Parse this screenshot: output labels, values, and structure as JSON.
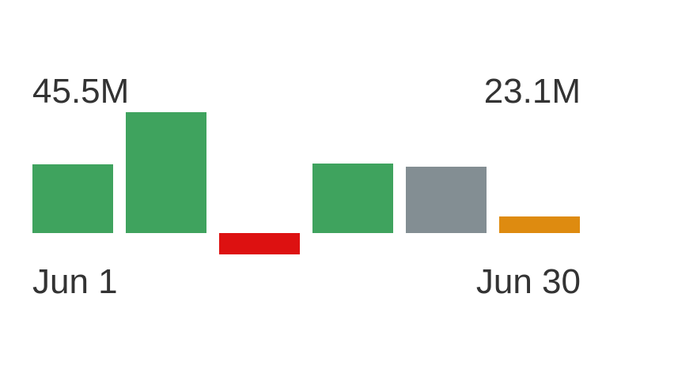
{
  "chart_data": {
    "type": "bar",
    "start_value_label": "45.5M",
    "end_value_label": "23.1M",
    "start_date_label": "Jun 1",
    "end_date_label": "Jun 30",
    "values": [
      87,
      153,
      -27,
      88,
      84,
      21
    ],
    "bar_colors": [
      "#3fa35e",
      "#3fa35e",
      "#dd1111",
      "#3fa35e",
      "#838e93",
      "#de8b10"
    ],
    "zero_line": true,
    "grid": false,
    "legend": "none"
  }
}
